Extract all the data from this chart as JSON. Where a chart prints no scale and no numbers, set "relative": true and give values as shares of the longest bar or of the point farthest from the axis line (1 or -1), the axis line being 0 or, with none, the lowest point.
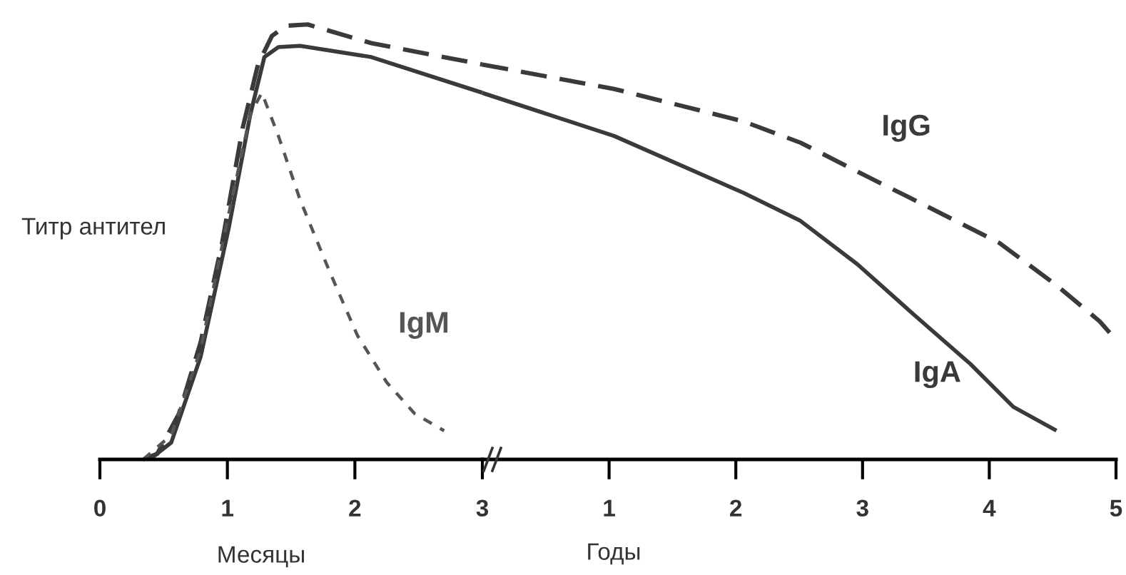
{
  "chart_data": [
    {
      "type": "line",
      "relative": true,
      "xlabel": "Месяцы",
      "ylabel": "Титр антител",
      "xlim": [
        0,
        3
      ],
      "xticks": [
        0,
        1,
        2,
        3
      ],
      "grid": false,
      "legend": false,
      "marker": "none",
      "series": [
        {
          "color": "#3a3a3a",
          "line_style": "dashed",
          "x": [
            0.34,
            0.45,
            0.62,
            0.79,
            0.96,
            1.12,
            1.24,
            1.35,
            1.46,
            1.63,
            2.13,
            3
          ],
          "values": [
            0,
            0.013,
            0.105,
            0.269,
            0.5,
            0.762,
            0.908,
            0.974,
            0.997,
            1,
            0.957,
            0.908
          ]
        },
        {
          "color": "#3a3a3a",
          "line_style": "solid",
          "x": [
            0.39,
            0.56,
            0.79,
            1.01,
            1.18,
            1.29,
            1.4,
            1.57,
            2.13,
            3
          ],
          "values": [
            0,
            0.039,
            0.236,
            0.531,
            0.793,
            0.925,
            0.948,
            0.951,
            0.925,
            0.843
          ]
        },
        {
          "name": "IgM",
          "color": "#555555",
          "line_style": "dotted",
          "x": [
            0.34,
            0.56,
            0.79,
            1.01,
            1.18,
            1.27,
            1.4,
            1.57,
            1.8,
            2.02,
            2.25,
            2.47,
            2.7
          ],
          "values": [
            0,
            0.056,
            0.252,
            0.564,
            0.793,
            0.843,
            0.744,
            0.597,
            0.433,
            0.285,
            0.177,
            0.105,
            0.066
          ]
        }
      ]
    },
    {
      "type": "line",
      "relative": true,
      "xlabel": "Годы",
      "xlim": [
        0,
        5
      ],
      "xticks": [
        1,
        2,
        3,
        4,
        5
      ],
      "grid": false,
      "legend": false,
      "marker": "none",
      "series": [
        {
          "name": "IgG",
          "color": "#3a3a3a",
          "line_style": "dashed",
          "x": [
            0,
            1.04,
            2.06,
            2.51,
            3.07,
            3.52,
            4.08,
            4.53,
            4.87,
            5
          ],
          "values": [
            1,
            0.938,
            0.856,
            0.802,
            0.711,
            0.639,
            0.548,
            0.441,
            0.35,
            0.303
          ]
        },
        {
          "name": "IgA",
          "color": "#3a3a3a",
          "line_style": "solid",
          "x": [
            0,
            1.04,
            2.06,
            2.51,
            2.96,
            3.4,
            3.85,
            4.19,
            4.53
          ],
          "values": [
            0.928,
            0.819,
            0.675,
            0.604,
            0.494,
            0.368,
            0.242,
            0.133,
            0.073
          ]
        }
      ]
    }
  ]
}
